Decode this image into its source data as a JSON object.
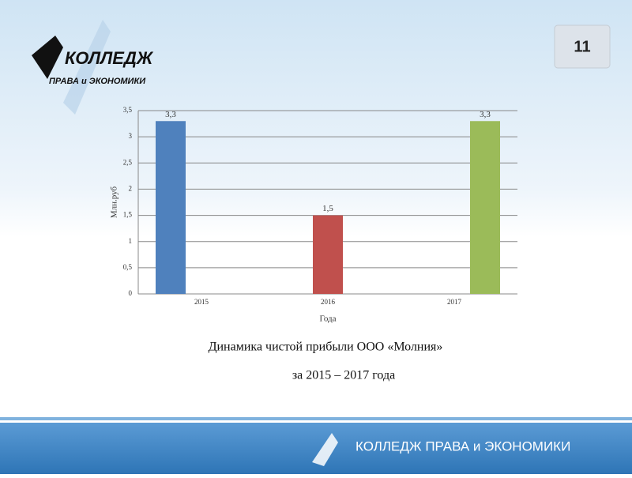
{
  "slide_number": "11",
  "logo": {
    "line1": "КОЛЛЕДЖ",
    "line2": "ПРАВА и ЭКОНОМИКИ"
  },
  "chart_data": {
    "type": "bar",
    "categories": [
      "2015",
      "2016",
      "2017"
    ],
    "values": [
      3.3,
      1.5,
      3.3
    ],
    "value_labels": [
      "3,3",
      "1,5",
      "3,3"
    ],
    "colors": [
      "#4f81bd",
      "#c0504d",
      "#9bbb59"
    ],
    "ylabel": "Млн.руб",
    "xlabel": "Года",
    "ylim": [
      0,
      3.5
    ],
    "yticks": [
      0,
      {
        "value": 0.5,
        "label": "0,5"
      },
      1,
      {
        "value": 1.5,
        "label": "1,5"
      },
      2,
      {
        "value": 2.5,
        "label": "2,5"
      },
      3,
      {
        "value": 3.5,
        "label": "3,5"
      }
    ],
    "grid": true
  },
  "caption": {
    "line1": "Динамика чистой прибыли ООО «Молния»",
    "line2": "за 2015 – 2017 года"
  },
  "footer": "КОЛЛЕДЖ ПРАВА и ЭКОНОМИКИ"
}
